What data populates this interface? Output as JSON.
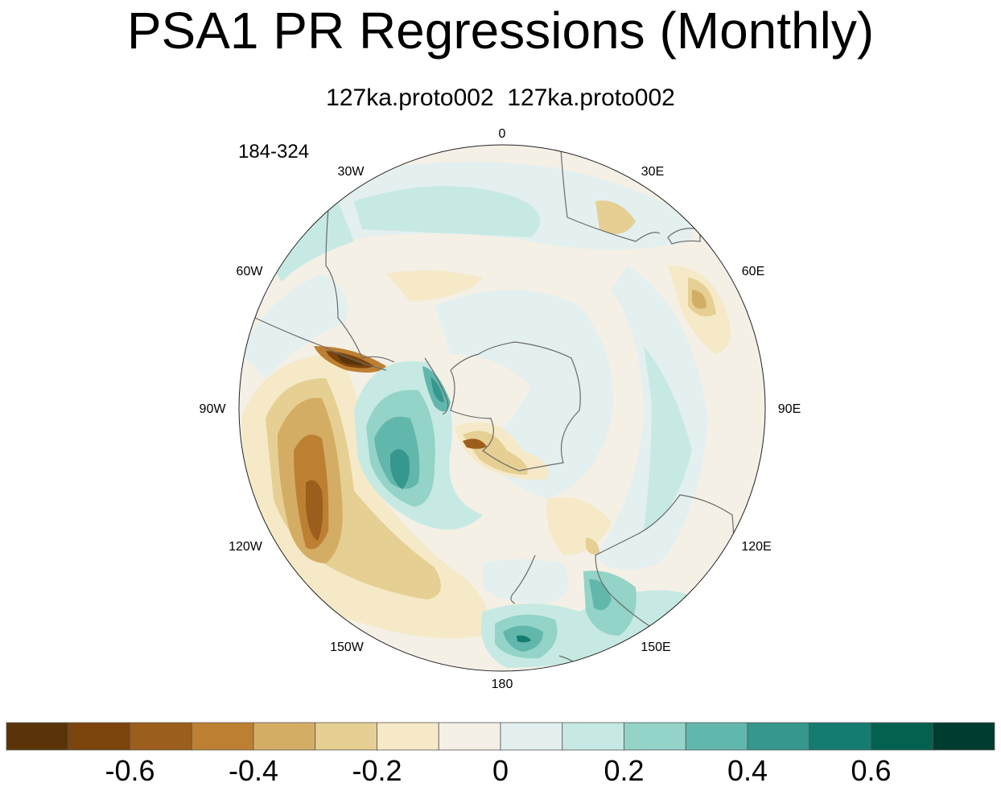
{
  "title": "PSA1 PR Regressions (Monthly)",
  "subtitle": "127ka.proto002  127ka.proto002",
  "years_label": "184-324",
  "map": {
    "projection": "polar-stereographic-south",
    "longitude_labels": {
      "0": "0",
      "30E": "30E",
      "60E": "60E",
      "90E": "90E",
      "120E": "120E",
      "150E": "150E",
      "180": "180",
      "150W": "150W",
      "120W": "120W",
      "90W": "90W",
      "60W": "60W",
      "30W": "30W"
    }
  },
  "colorbar": {
    "colors": [
      "#5a3408",
      "#7c450e",
      "#9c5e1c",
      "#bd8032",
      "#d4ad65",
      "#e6cf93",
      "#f5e9c7",
      "#f4f0e6",
      "#e3f0ef",
      "#c7e9e3",
      "#93d3c8",
      "#62b7ac",
      "#35978e",
      "#157c71",
      "#02614f",
      "#003c30"
    ],
    "tick_labels": [
      "-0.6",
      "-0.4",
      "-0.2",
      "0",
      "0.2",
      "0.4",
      "0.6"
    ],
    "tick_values": [
      -0.6,
      -0.4,
      -0.2,
      0,
      0.2,
      0.4,
      0.6
    ]
  }
}
